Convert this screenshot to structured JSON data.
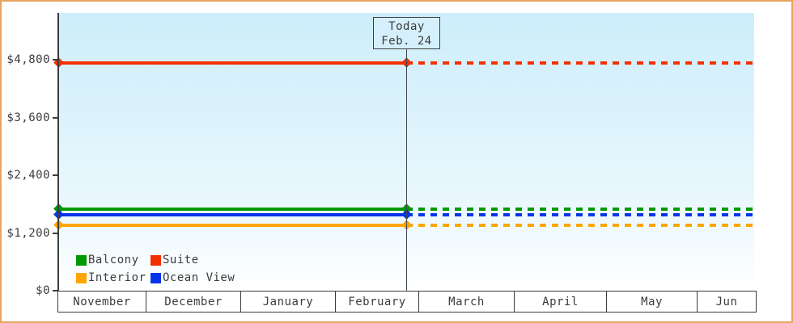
{
  "window": {
    "border_color": "#e8a55f",
    "background_color": "#ffffff"
  },
  "today_box": {
    "line1": "Today",
    "line2": "Feb. 24"
  },
  "legend": {
    "items": [
      {
        "label": "Balcony",
        "color": "#009900"
      },
      {
        "label": "Suite",
        "color": "#f53000"
      },
      {
        "label": "Interior",
        "color": "#ffa500"
      },
      {
        "label": "Ocean View",
        "color": "#0435eb"
      }
    ]
  },
  "chart_data": {
    "type": "line",
    "title": "",
    "xlabel": "",
    "ylabel": "",
    "x_months": [
      "November",
      "December",
      "January",
      "February",
      "March",
      "April",
      "May",
      "Jun"
    ],
    "today_annotation": {
      "label": "Today",
      "date": "Feb. 24",
      "x_month": "February",
      "x_day": 24
    },
    "y_ticks": [
      4800,
      3600,
      2400,
      1200,
      0
    ],
    "y_tick_labels": [
      "$4,800",
      "$3,600",
      "$2,400",
      "$1,200",
      "$0"
    ],
    "ylim": [
      0,
      5050
    ],
    "grid": false,
    "legend_position": "lower-left",
    "background_gradient": [
      "#cdeefb",
      "#ffffff"
    ],
    "series": [
      {
        "name": "Suite",
        "color": "#f53000",
        "value": 4740,
        "history": "flat solid line from November to Feb. 24",
        "forecast": "flat dashed line from Feb. 24 to June"
      },
      {
        "name": "Balcony",
        "color": "#009900",
        "value": 1690,
        "history": "flat solid line from November to Feb. 24",
        "forecast": "flat dashed line from Feb. 24 to June"
      },
      {
        "name": "Ocean View",
        "color": "#0435eb",
        "value": 1580,
        "history": "flat solid line from November to Feb. 24",
        "forecast": "flat dashed line from Feb. 24 to June"
      },
      {
        "name": "Interior",
        "color": "#ffa500",
        "value": 1360,
        "history": "flat solid line from November to Feb. 24",
        "forecast": "flat dashed line from Feb. 24 to June"
      }
    ]
  }
}
